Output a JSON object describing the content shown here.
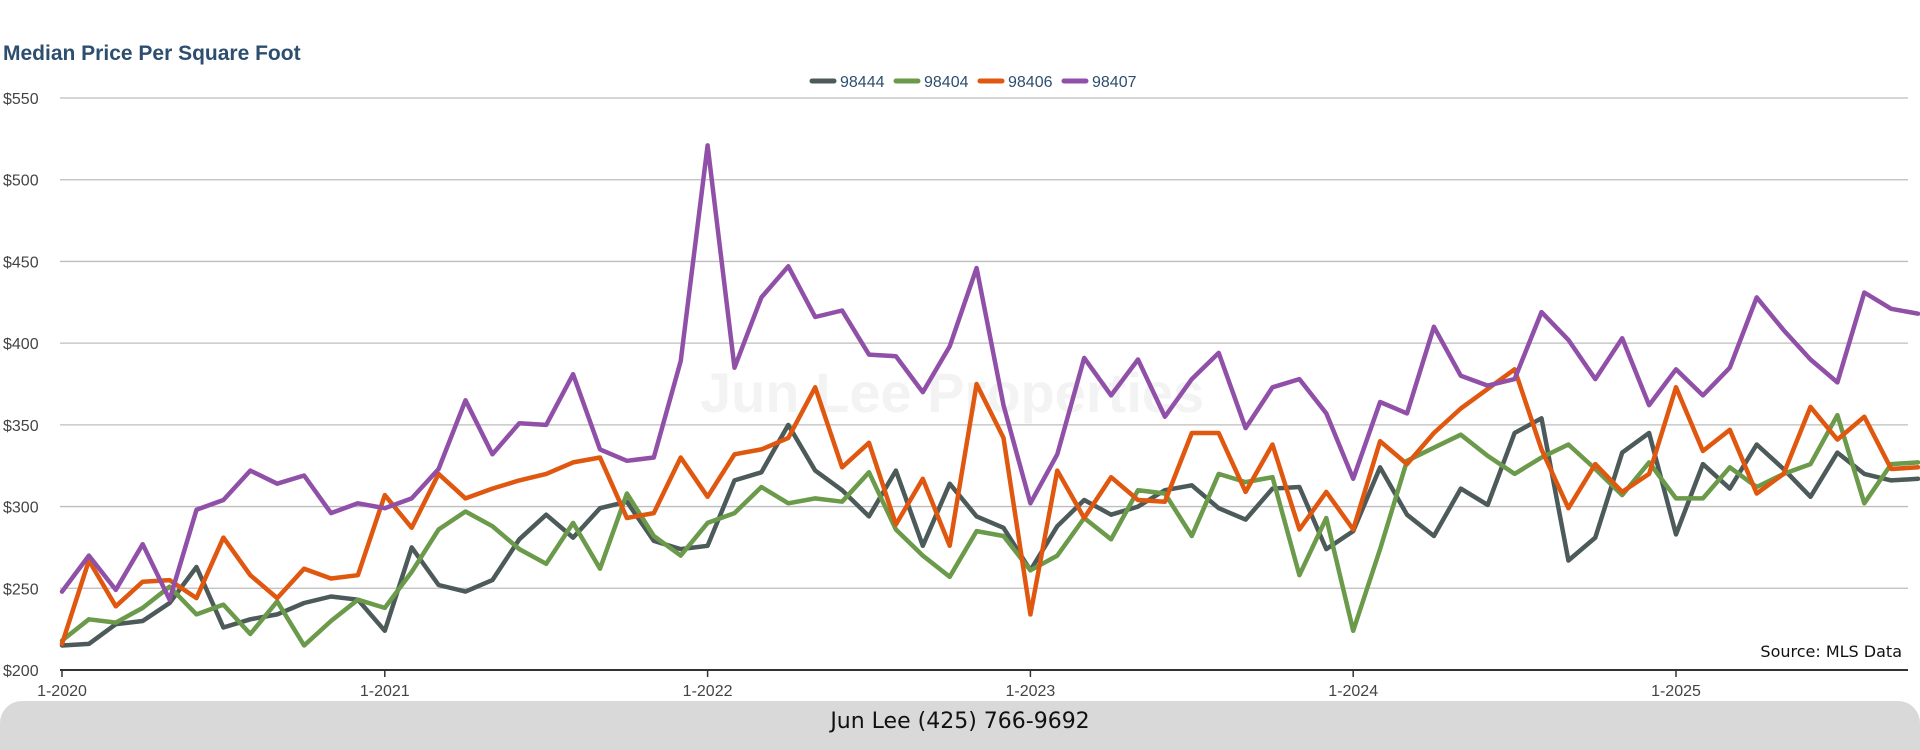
{
  "title": "Median Price Per Square Foot",
  "source": "Source: MLS Data",
  "footer": "Jun Lee (425) 766-9692",
  "watermark": "Jun Lee Properties",
  "chart_data": {
    "type": "line",
    "title": "Median Price Per Square Foot",
    "xlabel": "",
    "ylabel": "",
    "ylim": [
      200,
      550
    ],
    "y_ticks": [
      200,
      250,
      300,
      350,
      400,
      450,
      500,
      550
    ],
    "y_tick_labels": [
      "$200",
      "$250",
      "$300",
      "$350",
      "$400",
      "$450",
      "$500",
      "$550"
    ],
    "x_ticks": [
      "1-2020",
      "1-2021",
      "1-2022",
      "1-2023",
      "1-2024",
      "1-2025"
    ],
    "x": [
      "1-2020",
      "2-2020",
      "3-2020",
      "4-2020",
      "5-2020",
      "6-2020",
      "7-2020",
      "8-2020",
      "9-2020",
      "10-2020",
      "11-2020",
      "12-2020",
      "1-2021",
      "2-2021",
      "3-2021",
      "4-2021",
      "5-2021",
      "6-2021",
      "7-2021",
      "8-2021",
      "9-2021",
      "10-2021",
      "11-2021",
      "12-2021",
      "1-2022",
      "2-2022",
      "3-2022",
      "4-2022",
      "5-2022",
      "6-2022",
      "7-2022",
      "8-2022",
      "9-2022",
      "10-2022",
      "11-2022",
      "12-2022",
      "1-2023",
      "2-2023",
      "3-2023",
      "4-2023",
      "5-2023",
      "6-2023",
      "7-2023",
      "8-2023",
      "9-2023",
      "10-2023",
      "11-2023",
      "12-2023",
      "1-2024",
      "2-2024",
      "3-2024",
      "4-2024",
      "5-2024",
      "6-2024",
      "7-2024",
      "8-2024",
      "9-2024",
      "10-2024",
      "11-2024",
      "12-2024",
      "1-2025",
      "2-2025",
      "3-2025",
      "4-2025",
      "5-2025",
      "6-2025",
      "7-2025",
      "8-2025",
      "9-2025",
      "10-2025"
    ],
    "grid": true,
    "legend_position": "top-center",
    "series": [
      {
        "name": "98444",
        "color": "#4d5a5a",
        "values": [
          215,
          216,
          228,
          230,
          241,
          263,
          226,
          231,
          234,
          241,
          245,
          243,
          224,
          275,
          252,
          248,
          255,
          280,
          295,
          281,
          299,
          303,
          279,
          274,
          276,
          316,
          321,
          350,
          322,
          310,
          294,
          322,
          276,
          314,
          294,
          287,
          261,
          288,
          304,
          295,
          300,
          310,
          313,
          299,
          292,
          311,
          312,
          274,
          285,
          324,
          295,
          282,
          311,
          301,
          345,
          354,
          267,
          281,
          333,
          345,
          283,
          326,
          311,
          338,
          323,
          306,
          333,
          320,
          316,
          317
        ]
      },
      {
        "name": "98404",
        "color": "#6a9a4a",
        "values": [
          218,
          231,
          229,
          238,
          251,
          234,
          240,
          222,
          242,
          215,
          230,
          243,
          238,
          260,
          286,
          297,
          288,
          274,
          265,
          290,
          262,
          308,
          282,
          270,
          290,
          296,
          312,
          302,
          305,
          303,
          321,
          286,
          270,
          257,
          285,
          282,
          261,
          270,
          293,
          280,
          310,
          308,
          282,
          320,
          315,
          318,
          258,
          293,
          224,
          274,
          328,
          336,
          344,
          331,
          320,
          330,
          338,
          323,
          307,
          327,
          305,
          305,
          324,
          312,
          320,
          326,
          356,
          302,
          326,
          327
        ]
      },
      {
        "name": "98406",
        "color": "#e0570f",
        "values": [
          216,
          267,
          239,
          254,
          255,
          244,
          281,
          258,
          244,
          262,
          256,
          258,
          307,
          287,
          320,
          305,
          311,
          316,
          320,
          327,
          330,
          293,
          296,
          330,
          306,
          332,
          335,
          342,
          373,
          324,
          339,
          289,
          317,
          276,
          375,
          342,
          234,
          322,
          293,
          318,
          304,
          303,
          345,
          345,
          309,
          338,
          286,
          309,
          286,
          340,
          326,
          345,
          360,
          372,
          384,
          335,
          299,
          326,
          309,
          320,
          373,
          334,
          347,
          308,
          320,
          361,
          341,
          355,
          323,
          324
        ]
      },
      {
        "name": "98407",
        "color": "#9050a8",
        "values": [
          248,
          270,
          249,
          277,
          243,
          298,
          304,
          322,
          314,
          319,
          296,
          302,
          299,
          305,
          323,
          365,
          332,
          351,
          350,
          381,
          335,
          328,
          330,
          389,
          521,
          385,
          428,
          447,
          416,
          420,
          393,
          392,
          370,
          398,
          446,
          362,
          302,
          332,
          391,
          368,
          390,
          355,
          378,
          394,
          348,
          373,
          378,
          357,
          317,
          364,
          357,
          410,
          380,
          374,
          378,
          419,
          402,
          378,
          403,
          362,
          384,
          368,
          385,
          428,
          408,
          390,
          376,
          431,
          421,
          418
        ]
      }
    ]
  }
}
